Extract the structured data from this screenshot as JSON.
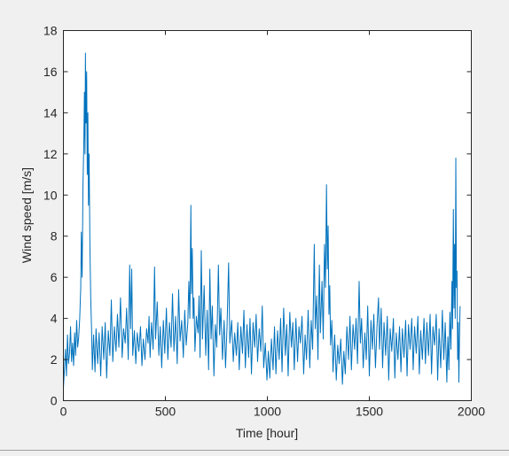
{
  "chart_data": {
    "type": "line",
    "xlabel": "Time [hour]",
    "ylabel": "Wind speed [m/s]",
    "xlim": [
      0,
      2000
    ],
    "xticks": [
      0,
      500,
      1000,
      1500,
      2000
    ],
    "ylim": [
      0,
      18
    ],
    "yticks": [
      0,
      2,
      4,
      6,
      8,
      10,
      12,
      14,
      16,
      18
    ],
    "series": [
      {
        "color": "#0072bd",
        "x": [
          0,
          5,
          10,
          15,
          20,
          25,
          30,
          35,
          40,
          45,
          50,
          55,
          60,
          65,
          70,
          75,
          80,
          85,
          88,
          92,
          96,
          100,
          103,
          106,
          108,
          111,
          114,
          117,
          120,
          123,
          126,
          130,
          134,
          138,
          142,
          148,
          155,
          160,
          168,
          175,
          183,
          190,
          198,
          205,
          212,
          220,
          228,
          235,
          242,
          250,
          258,
          265,
          272,
          280,
          288,
          295,
          303,
          310,
          318,
          325,
          330,
          335,
          340,
          348,
          355,
          362,
          370,
          378,
          385,
          392,
          400,
          408,
          415,
          420,
          425,
          432,
          440,
          447,
          452,
          460,
          468,
          475,
          482,
          490,
          497,
          505,
          512,
          520,
          528,
          535,
          542,
          550,
          558,
          565,
          572,
          580,
          588,
          595,
          602,
          610,
          615,
          620,
          625,
          628,
          632,
          636,
          640,
          645,
          652,
          660,
          665,
          670,
          676,
          682,
          690,
          698,
          705,
          712,
          718,
          724,
          730,
          738,
          745,
          752,
          760,
          766,
          772,
          780,
          788,
          795,
          802,
          810,
          816,
          825,
          833,
          840,
          848,
          855,
          862,
          870,
          878,
          885,
          892,
          900,
          908,
          915,
          922,
          930,
          938,
          945,
          952,
          960,
          968,
          975,
          982,
          990,
          998,
          1005,
          1012,
          1020,
          1028,
          1035,
          1042,
          1050,
          1058,
          1065,
          1072,
          1080,
          1088,
          1095,
          1102,
          1110,
          1118,
          1125,
          1132,
          1140,
          1148,
          1155,
          1162,
          1170,
          1178,
          1185,
          1192,
          1200,
          1208,
          1215,
          1222,
          1230,
          1235,
          1242,
          1248,
          1255,
          1260,
          1268,
          1274,
          1280,
          1285,
          1290,
          1294,
          1298,
          1302,
          1306,
          1310,
          1316,
          1322,
          1330,
          1338,
          1345,
          1352,
          1360,
          1368,
          1375,
          1382,
          1390,
          1398,
          1405,
          1412,
          1420,
          1428,
          1435,
          1442,
          1450,
          1456,
          1462,
          1470,
          1478,
          1485,
          1492,
          1500,
          1508,
          1515,
          1522,
          1530,
          1538,
          1545,
          1550,
          1558,
          1565,
          1572,
          1580,
          1588,
          1595,
          1602,
          1610,
          1618,
          1625,
          1632,
          1640,
          1648,
          1655,
          1662,
          1670,
          1678,
          1685,
          1692,
          1700,
          1708,
          1715,
          1722,
          1730,
          1738,
          1745,
          1752,
          1760,
          1768,
          1775,
          1782,
          1790,
          1798,
          1805,
          1812,
          1820,
          1828,
          1835,
          1842,
          1850,
          1858,
          1865,
          1872,
          1880,
          1885,
          1890,
          1895,
          1900,
          1905,
          1908,
          1912,
          1915,
          1918,
          1921,
          1924,
          1927,
          1930,
          1933,
          1936,
          1939,
          1942,
          1945
        ],
        "values": [
          0.6,
          1.5,
          2.5,
          1.2,
          3.2,
          1.8,
          2.3,
          3.6,
          1.9,
          2.8,
          1.7,
          3.3,
          2.2,
          3.9,
          2.6,
          3.1,
          4.0,
          5.5,
          8.2,
          6.0,
          10.5,
          12.5,
          15.0,
          12.0,
          16.9,
          13.5,
          16.0,
          11.0,
          14.0,
          9.5,
          12.0,
          7.5,
          5.0,
          3.5,
          1.5,
          3.2,
          1.4,
          3.5,
          1.8,
          3.3,
          1.2,
          3.6,
          2.0,
          3.8,
          1.1,
          3.4,
          2.2,
          4.9,
          1.9,
          3.6,
          2.4,
          4.2,
          2.6,
          5.0,
          2.1,
          3.5,
          2.8,
          4.5,
          2.0,
          6.6,
          3.5,
          6.4,
          2.2,
          3.4,
          1.8,
          3.3,
          2.4,
          3.6,
          1.7,
          3.0,
          2.0,
          3.5,
          2.8,
          4.1,
          2.1,
          3.8,
          2.5,
          6.5,
          3.0,
          4.8,
          2.2,
          3.6,
          1.6,
          3.9,
          2.3,
          4.5,
          2.0,
          3.8,
          2.6,
          5.2,
          2.4,
          4.1,
          1.8,
          5.4,
          2.9,
          3.9,
          2.1,
          4.4,
          2.7,
          3.8,
          5.8,
          4.0,
          9.5,
          5.2,
          7.4,
          4.0,
          5.0,
          2.4,
          4.1,
          3.3,
          5.1,
          2.1,
          7.3,
          3.0,
          5.6,
          2.2,
          4.4,
          1.5,
          6.4,
          3.0,
          4.6,
          1.2,
          3.7,
          2.6,
          6.6,
          3.2,
          4.5,
          2.0,
          3.9,
          1.6,
          3.5,
          6.7,
          2.8,
          3.9,
          1.9,
          3.3,
          2.2,
          3.8,
          1.5,
          3.6,
          2.3,
          4.4,
          1.6,
          3.7,
          2.1,
          4.0,
          1.3,
          3.8,
          2.6,
          4.2,
          1.9,
          3.5,
          2.4,
          4.6,
          1.6,
          2.8,
          1.0,
          2.4,
          1.1,
          3.0,
          1.5,
          3.6,
          1.3,
          3.4,
          2.0,
          4.0,
          1.4,
          4.5,
          2.2,
          3.7,
          1.2,
          4.3,
          2.6,
          3.8,
          1.5,
          4.0,
          1.9,
          3.6,
          2.8,
          4.1,
          1.3,
          3.2,
          2.0,
          4.4,
          1.6,
          3.9,
          2.5,
          7.6,
          3.5,
          5.1,
          2.0,
          6.6,
          3.3,
          5.8,
          3.0,
          7.6,
          5.5,
          10.5,
          6.4,
          8.5,
          4.2,
          5.6,
          2.7,
          3.9,
          1.4,
          3.2,
          1.0,
          2.7,
          1.8,
          3.0,
          0.8,
          2.4,
          1.3,
          3.6,
          2.0,
          4.1,
          1.5,
          3.7,
          2.5,
          4.0,
          1.8,
          5.8,
          2.8,
          4.0,
          1.6,
          3.3,
          2.0,
          4.6,
          1.2,
          3.9,
          2.5,
          4.2,
          1.6,
          3.7,
          5.0,
          2.5,
          4.5,
          1.6,
          3.8,
          2.2,
          4.1,
          1.0,
          3.5,
          2.4,
          4.0,
          1.1,
          3.3,
          2.0,
          3.6,
          1.4,
          3.5,
          2.1,
          3.9,
          1.2,
          3.7,
          2.5,
          4.0,
          1.5,
          3.6,
          2.3,
          4.1,
          1.3,
          3.4,
          2.0,
          4.0,
          1.8,
          3.8,
          2.2,
          4.2,
          1.3,
          3.6,
          2.7,
          4.2,
          1.0,
          3.5,
          1.6,
          4.4,
          2.0,
          3.8,
          0.9,
          3.1,
          1.5,
          4.3,
          2.5,
          5.8,
          3.5,
          9.3,
          4.5,
          7.6,
          4.0,
          11.8,
          5.5,
          6.3,
          2.0,
          3.8,
          0.9,
          3.0,
          4.6
        ]
      }
    ]
  }
}
